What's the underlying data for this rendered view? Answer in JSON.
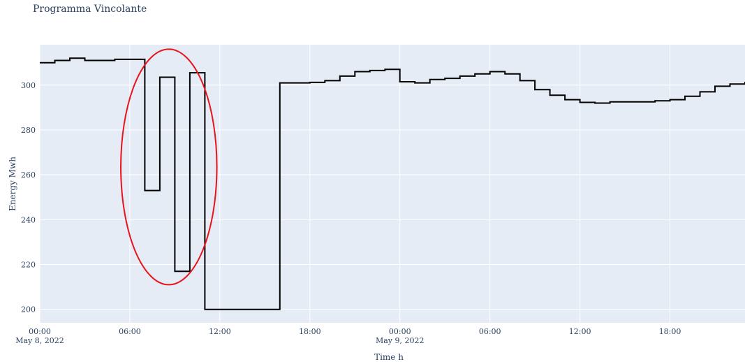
{
  "chart_data": {
    "type": "line",
    "line_shape": "step",
    "title": "Programma Vincolante",
    "xlabel": "Time h",
    "ylabel": "Energy Mwh",
    "hours_per_step": 1,
    "x_start": "2022-05-08 00:00",
    "x_end": "2022-05-09 23:00",
    "ylim": [
      194,
      318
    ],
    "yticks": [
      200,
      220,
      240,
      260,
      280,
      300
    ],
    "xticks": [
      {
        "hour": 0,
        "label": "00:00",
        "sublabel": "May 8, 2022"
      },
      {
        "hour": 6,
        "label": "06:00",
        "sublabel": ""
      },
      {
        "hour": 12,
        "label": "12:00",
        "sublabel": ""
      },
      {
        "hour": 18,
        "label": "18:00",
        "sublabel": ""
      },
      {
        "hour": 24,
        "label": "00:00",
        "sublabel": "May 9, 2022"
      },
      {
        "hour": 30,
        "label": "06:00",
        "sublabel": ""
      },
      {
        "hour": 36,
        "label": "12:00",
        "sublabel": ""
      },
      {
        "hour": 42,
        "label": "18:00",
        "sublabel": ""
      }
    ],
    "series": [
      {
        "name": "",
        "color": "#000000",
        "values": [
          310,
          311,
          312,
          311,
          311,
          311.5,
          311.5,
          253,
          303.5,
          217,
          305.5,
          200,
          200,
          200,
          200,
          200,
          301,
          301,
          301.2,
          302,
          304,
          306,
          306.5,
          307,
          301.5,
          301,
          302.5,
          303,
          304,
          305,
          306,
          305,
          302,
          298,
          295.5,
          293.5,
          292.3,
          292,
          292.5,
          292.5,
          292.5,
          293,
          293.5,
          295,
          297,
          299.5,
          300.5,
          301.5
        ]
      }
    ],
    "annotation": {
      "shape": "ellipse",
      "color": "#e8141b",
      "center_hour": 8.6,
      "center_value": 263.5,
      "hours_half_width": 3.2,
      "value_half_height": 52.5
    },
    "grid": true,
    "plot_background": "#e5ecf6"
  }
}
